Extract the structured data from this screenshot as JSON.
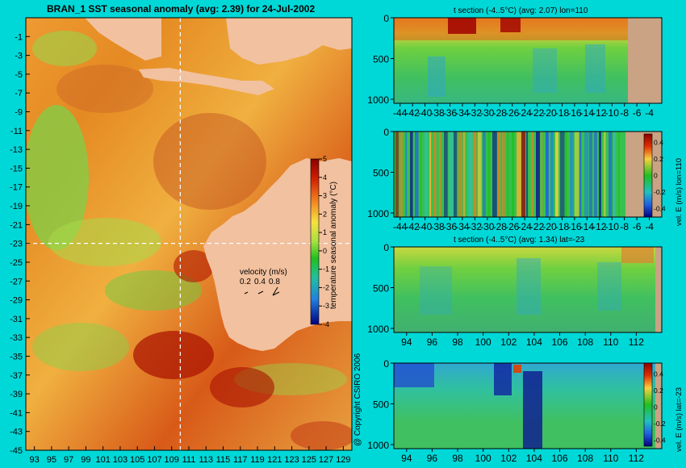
{
  "colors": {
    "background": "#00d8d8",
    "land": "#f2c19f",
    "land_section": "#c9a383",
    "guide": "#ffffff"
  },
  "credit": "@ Copyright CSIRO 2006",
  "chart_data": [
    {
      "id": "map",
      "type": "heatmap",
      "title": "BRAN_1 SST seasonal anomaly (avg: 2.39) for 24-Jul-2002",
      "x_ticks": [
        "93",
        "95",
        "97",
        "99",
        "101",
        "103",
        "105",
        "107",
        "109",
        "111",
        "113",
        "115",
        "117",
        "119",
        "121",
        "123",
        "125",
        "127",
        "129"
      ],
      "y_ticks": [
        "-1",
        "-3",
        "-5",
        "-7",
        "-9",
        "-11",
        "-13",
        "-15",
        "-17",
        "-19",
        "-21",
        "-23",
        "-25",
        "-27",
        "-29",
        "-31",
        "-33",
        "-35",
        "-37",
        "-39",
        "-41",
        "-43",
        "-45"
      ],
      "xlim": [
        92,
        130
      ],
      "ylim": [
        -45,
        1
      ],
      "crosshair": {
        "lon": 110,
        "lat": -23
      },
      "colorbar": {
        "label": "temperature seasonal anomaly (°C)",
        "ticks": [
          "5",
          "4",
          "3",
          "2",
          "1",
          "0",
          "-1",
          "-2",
          "-3",
          "-4"
        ],
        "range": [
          -4,
          5
        ]
      },
      "velocity_legend": {
        "title": "velocity (m/s)",
        "values": [
          "0.2",
          "0.4",
          "0.8"
        ]
      }
    },
    {
      "id": "t_section_lon",
      "type": "heatmap",
      "title": "t section (-4..5°C) (avg: 2.07) lon=110",
      "x_ticks": [
        "-44",
        "-42",
        "-40",
        "-38",
        "-36",
        "-34",
        "-32",
        "-30",
        "-28",
        "-26",
        "-24",
        "-22",
        "-20",
        "-18",
        "-16",
        "-14",
        "-12",
        "-10",
        "-8",
        "-6",
        "-4"
      ],
      "y_ticks": [
        "0",
        "500",
        "1000"
      ],
      "xlim": [
        -45,
        -2
      ],
      "ylim": [
        0,
        1050
      ]
    },
    {
      "id": "vel_section_lon",
      "type": "heatmap",
      "title": "",
      "x_ticks": [
        "-44",
        "-42",
        "-40",
        "-38",
        "-36",
        "-34",
        "-32",
        "-30",
        "-28",
        "-26",
        "-24",
        "-22",
        "-20",
        "-18",
        "-16",
        "-14",
        "-12",
        "-10",
        "-8",
        "-6",
        "-4"
      ],
      "y_ticks": [
        "0",
        "500",
        "1000"
      ],
      "xlim": [
        -45,
        -2
      ],
      "ylim": [
        0,
        1050
      ],
      "colorbar": {
        "label": "vel. E (m/s) lon=110",
        "ticks": [
          "0.4",
          "0.2",
          "0",
          "-0.2",
          "-0.4"
        ],
        "range": [
          -0.5,
          0.5
        ]
      }
    },
    {
      "id": "t_section_lat",
      "type": "heatmap",
      "title": "t section (-4..5°C) (avg: 1.34) lat=-23",
      "x_ticks": [
        "94",
        "96",
        "98",
        "100",
        "102",
        "104",
        "106",
        "108",
        "110",
        "112"
      ],
      "y_ticks": [
        "0",
        "500",
        "1000"
      ],
      "xlim": [
        93,
        114
      ],
      "ylim": [
        0,
        1050
      ]
    },
    {
      "id": "vel_section_lat",
      "type": "heatmap",
      "title": "",
      "x_ticks": [
        "94",
        "96",
        "98",
        "100",
        "102",
        "104",
        "106",
        "108",
        "110",
        "112"
      ],
      "y_ticks": [
        "0",
        "500",
        "1000"
      ],
      "xlim": [
        93,
        114
      ],
      "ylim": [
        0,
        1050
      ],
      "colorbar": {
        "label": "vel. E (m/s) lat=-23",
        "ticks": [
          "0.4",
          "0.2",
          "0",
          "-0.2",
          "-0.4"
        ],
        "range": [
          -0.5,
          0.5
        ]
      }
    }
  ]
}
